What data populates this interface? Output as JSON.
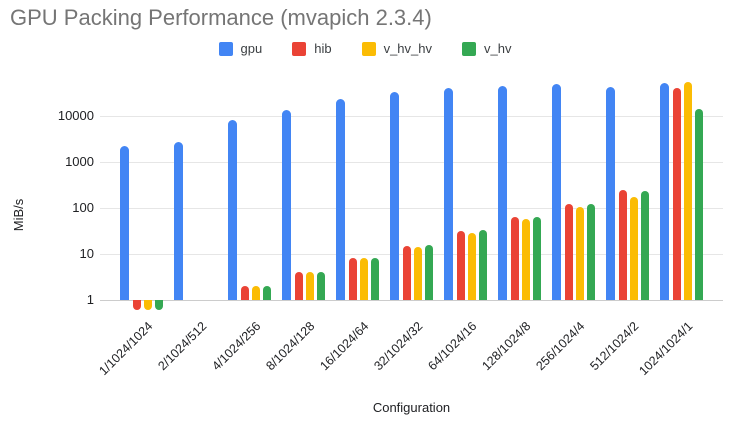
{
  "title": "GPU Packing Performance (mvapich 2.3.4)",
  "chart_data": {
    "type": "bar",
    "title": "GPU Packing Performance (mvapich 2.3.4)",
    "xlabel": "Configuration",
    "ylabel": "MiB/s",
    "y_scale": "log",
    "ylim": [
      0.55,
      60000
    ],
    "y_ticks": [
      1,
      10,
      100,
      1000,
      10000
    ],
    "grid": true,
    "legend_position": "top",
    "categories": [
      "1/1024/1024",
      "2/1024/512",
      "4/1024/256",
      "8/1024/128",
      "16/1024/64",
      "32/1024/32",
      "64/1024/16",
      "128/1024/8",
      "256/1024/4",
      "512/1024/2",
      "1024/1024/1"
    ],
    "series": [
      {
        "name": "gpu",
        "color": "#4285F4",
        "values": [
          2200,
          2700,
          8300,
          13500,
          23000,
          34000,
          41000,
          46000,
          50000,
          43000,
          52000
        ]
      },
      {
        "name": "hib",
        "color": "#EA4335",
        "values": [
          0.6,
          null,
          2,
          4,
          8,
          15,
          32,
          64,
          125,
          250,
          41000
        ]
      },
      {
        "name": "v_hv_hv",
        "color": "#FBBC04",
        "values": [
          0.6,
          null,
          2,
          4,
          8,
          14,
          28,
          57,
          105,
          170,
          54000
        ]
      },
      {
        "name": "v_hv",
        "color": "#34A853",
        "values": [
          0.6,
          null,
          2,
          4,
          8,
          16,
          33,
          64,
          125,
          240,
          14000
        ]
      }
    ]
  }
}
